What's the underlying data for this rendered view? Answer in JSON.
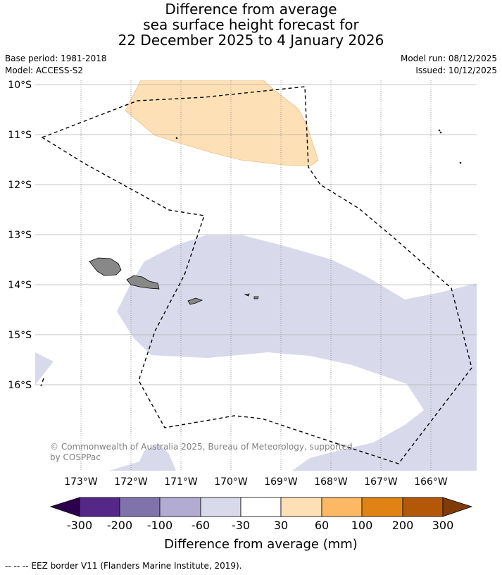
{
  "title": {
    "line1": "Difference from average",
    "line2": "sea surface height forecast for",
    "line3": "22 December 2025 to 4 January 2026"
  },
  "meta": {
    "base_period": "Base period: 1981-2018",
    "model": "Model: ACCESS-S2",
    "model_run": "Model run: 08/12/2025",
    "issued": "Issued: 10/12/2025"
  },
  "map": {
    "lat_labels": [
      "10°S",
      "11°S",
      "12°S",
      "13°S",
      "14°S",
      "15°S",
      "16°S"
    ],
    "lon_labels": [
      "173°W",
      "172°W",
      "171°W",
      "170°W",
      "169°W",
      "168°W",
      "167°W",
      "166°W"
    ],
    "copyright": "© Commonwealth of Australia 2025, Bureau of Meteorology, supported",
    "copyright2": "by COSPPac",
    "colors": {
      "positive_30_60": "#fee0b6",
      "negative_30_60": "#d8daeb",
      "land": "#888888",
      "grid": "#b0b0b0"
    }
  },
  "colorbar": {
    "ticks": [
      "-300",
      "-200",
      "-100",
      "-60",
      "-30",
      "30",
      "60",
      "100",
      "200",
      "300"
    ],
    "colors": [
      "#2d004b",
      "#542788",
      "#8073ac",
      "#b2abd2",
      "#d8daeb",
      "#ffffff",
      "#fee0b6",
      "#fdb863",
      "#e08214",
      "#b35806",
      "#7f3b08"
    ],
    "title": "Difference from average (mm)"
  },
  "footer": "--  --  -- EEZ border V11 (Flanders Marine Institute, 2019)."
}
